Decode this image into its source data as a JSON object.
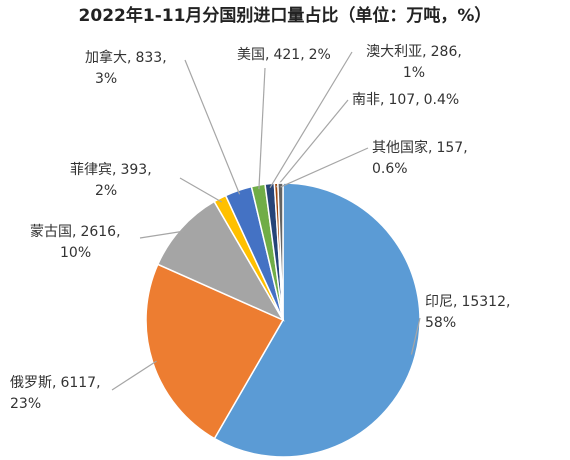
{
  "chart_data": {
    "type": "pie",
    "title": "2022年1-11月分国别进口量占比（单位：万吨，%）",
    "label_separator": ",",
    "categories": [
      "印尼",
      "俄罗斯",
      "蒙古国",
      "菲律宾",
      "加拿大",
      "美国",
      "澳大利亚",
      "南非",
      "其他国家"
    ],
    "values": [
      15312,
      6117,
      2616,
      393,
      833,
      421,
      286,
      107,
      157
    ],
    "percent_labels": [
      "58%",
      "23%",
      "10%",
      "2%",
      "3%",
      "2%",
      "1%",
      "0.4%",
      "0.6%"
    ],
    "colors": [
      "#5b9bd5",
      "#ed7d31",
      "#a5a5a5",
      "#ffc000",
      "#4472c4",
      "#70ad47",
      "#264478",
      "#9e480e",
      "#636363"
    ]
  }
}
